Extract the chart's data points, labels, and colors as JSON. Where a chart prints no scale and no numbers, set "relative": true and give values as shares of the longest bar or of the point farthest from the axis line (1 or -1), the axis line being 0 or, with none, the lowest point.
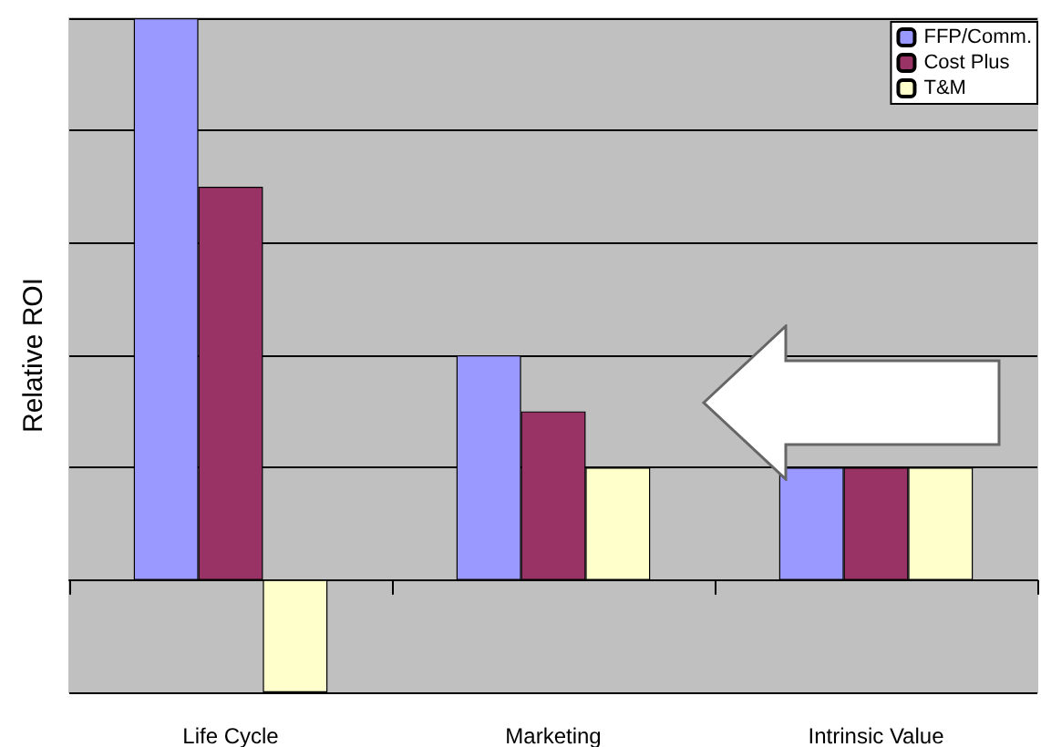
{
  "chart_data": {
    "type": "bar",
    "ylabel": "Relative ROI",
    "relative": true,
    "grid": "y",
    "legend": "top right",
    "categories": [
      "Life Cycle",
      "Marketing",
      "Intrinsic Value"
    ],
    "series": [
      {
        "name": "FFP/Comm.",
        "color": "#9999ff",
        "values": [
          1,
          0.4,
          0.2
        ]
      },
      {
        "name": "Cost Plus",
        "color": "#993366",
        "values": [
          0.7,
          0.3,
          0.2
        ]
      },
      {
        "name": "T&M",
        "color": "#ffffcc",
        "values": [
          -0.2,
          0.2,
          0.2
        ]
      }
    ]
  }
}
